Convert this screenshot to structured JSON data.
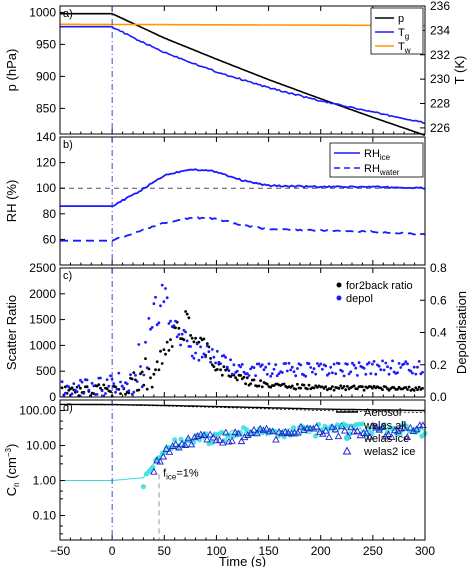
{
  "chart_data": [
    {
      "type": "line",
      "panel_label": "a)",
      "x": [
        -50,
        0,
        50,
        100,
        150,
        200,
        250,
        300
      ],
      "ylabel_left": "p (hPa)",
      "ylabel_right": "T (K)",
      "ylim_left": [
        810,
        1010
      ],
      "ylim_right": [
        225.5,
        236
      ],
      "yticks_left": [
        "1000",
        "950",
        "900",
        "850"
      ],
      "yticks_right": [
        "236",
        "234",
        "232",
        "230",
        "228",
        "226"
      ],
      "series": [
        {
          "name": "p",
          "axis": "left",
          "color": "#000000",
          "x": [
            -50,
            0,
            50,
            100,
            150,
            200,
            250,
            300
          ],
          "values": [
            998,
            998,
            960,
            927,
            895,
            865,
            836,
            808
          ]
        },
        {
          "name": "Tg",
          "axis": "right",
          "color": "#1a1aff",
          "x": [
            -50,
            0,
            20,
            50,
            100,
            150,
            200,
            250,
            300
          ],
          "values": [
            234.3,
            234.3,
            233.4,
            232.2,
            230.6,
            229.3,
            228.2,
            227.3,
            226.4
          ]
        },
        {
          "name": "Tw",
          "axis": "right",
          "color": "#ff9900",
          "x": [
            -50,
            300
          ],
          "values": [
            234.5,
            234.4
          ]
        }
      ],
      "legend": {
        "position": "top-right",
        "labels": [
          "p",
          "T",
          "T"
        ],
        "subs": [
          "",
          "g",
          "w"
        ]
      }
    },
    {
      "type": "line",
      "panel_label": "b)",
      "x": [
        -50,
        0,
        50,
        100,
        150,
        200,
        250,
        300
      ],
      "ylabel": "RH (%)",
      "ylim": [
        40,
        140
      ],
      "yticks": [
        "140",
        "120",
        "100",
        "80",
        "60"
      ],
      "reference_line": 100,
      "series": [
        {
          "name": "RHice",
          "style": "solid",
          "color": "#1a1aff",
          "x": [
            -50,
            0,
            25,
            50,
            75,
            100,
            125,
            150,
            200,
            250,
            300
          ],
          "values": [
            86,
            86,
            97,
            110,
            115,
            113,
            106,
            102,
            101,
            101,
            100
          ]
        },
        {
          "name": "RHwater",
          "style": "dashed",
          "color": "#1a1aff",
          "x": [
            -50,
            0,
            25,
            50,
            75,
            100,
            125,
            150,
            200,
            250,
            300
          ],
          "values": [
            59,
            59,
            66,
            73,
            77,
            76,
            71,
            68,
            67,
            66,
            64
          ]
        }
      ],
      "legend": {
        "position": "top-right",
        "labels": [
          "RH",
          "RH"
        ],
        "subs": [
          "ice",
          "water"
        ]
      }
    },
    {
      "type": "scatter",
      "panel_label": "c)",
      "ylabel_left": "Scatter Ratio",
      "ylabel_right": "Depolarisation",
      "ylim_left": [
        0,
        2500
      ],
      "ylim_right": [
        0,
        0.8
      ],
      "yticks_left": [
        "2500",
        "2000",
        "1500",
        "1000",
        "500",
        "0"
      ],
      "yticks_right": [
        "0.8",
        "0.6",
        "0.4",
        "0.2",
        "0.0"
      ],
      "series": [
        {
          "name": "for2back ratio",
          "axis": "left",
          "color": "#000000",
          "x": [
            -50,
            0,
            20,
            30,
            40,
            50,
            60,
            70,
            80,
            90,
            100,
            120,
            150,
            200,
            250,
            300
          ],
          "values": [
            100,
            150,
            250,
            400,
            500,
            900,
            1250,
            1350,
            1050,
            900,
            600,
            350,
            220,
            180,
            170,
            160
          ]
        },
        {
          "name": "depol",
          "axis": "right",
          "color": "#1a1aff",
          "x": [
            -50,
            0,
            20,
            30,
            40,
            50,
            60,
            70,
            80,
            90,
            100,
            110,
            120,
            150,
            200,
            250,
            300
          ],
          "values": [
            0.05,
            0.07,
            0.1,
            0.25,
            0.5,
            0.6,
            0.45,
            0.36,
            0.3,
            0.26,
            0.24,
            0.2,
            0.17,
            0.17,
            0.17,
            0.18,
            0.19
          ]
        }
      ],
      "legend": {
        "position": "top-right",
        "labels": [
          "for2back ratio",
          "depol"
        ]
      }
    },
    {
      "type": "scatter",
      "panel_label": "d)",
      "ylabel": "C",
      "ylabel_sub": "n",
      "ylabel_unit": " (cm",
      "ylabel_sup": "−3",
      "ylabel_end": ")",
      "yscale": "log",
      "ylim": [
        0.02,
        200
      ],
      "yticks": [
        "100.00",
        "10.00",
        "1.00",
        "0.10"
      ],
      "xlabel": "Time (s)",
      "xticks": [
        "−50",
        "0",
        "50",
        "100",
        "150",
        "200",
        "250",
        "300"
      ],
      "annotation": {
        "text": "f",
        "sub": "ice",
        "rest": "=1%",
        "x": 45
      },
      "series": [
        {
          "name": "Aerosol",
          "style": "solid",
          "color": "#000000",
          "x": [
            -50,
            0,
            50,
            100,
            150,
            200,
            250,
            300
          ],
          "values": [
            150,
            148,
            140,
            130,
            120,
            110,
            105,
            100
          ]
        },
        {
          "name": "welas all",
          "style": "solid",
          "color": "#33dddd",
          "x": [
            -50,
            0,
            30,
            40,
            50,
            60,
            80,
            100,
            150,
            200,
            250,
            300
          ],
          "values": [
            1,
            1,
            1.2,
            3,
            8,
            12,
            17,
            20,
            25,
            28,
            30,
            30
          ]
        },
        {
          "name": "welas ice",
          "style": "circle",
          "color": "#33dddd",
          "x": [
            30,
            40,
            50,
            60,
            80,
            100,
            150,
            200,
            250,
            300
          ],
          "values": [
            1,
            2,
            7,
            11,
            16,
            20,
            26,
            29,
            30,
            30
          ]
        },
        {
          "name": "welas2 ice",
          "style": "triangle",
          "color": "#2222cc",
          "x": [
            40,
            50,
            60,
            80,
            100,
            150,
            200,
            250,
            300
          ],
          "values": [
            2,
            5,
            9,
            14,
            18,
            23,
            26,
            27,
            28
          ]
        }
      ],
      "legend": {
        "position": "top-right",
        "labels": [
          "Aerosol",
          "welas all",
          "welas ice",
          "welas2 ice"
        ]
      }
    }
  ]
}
